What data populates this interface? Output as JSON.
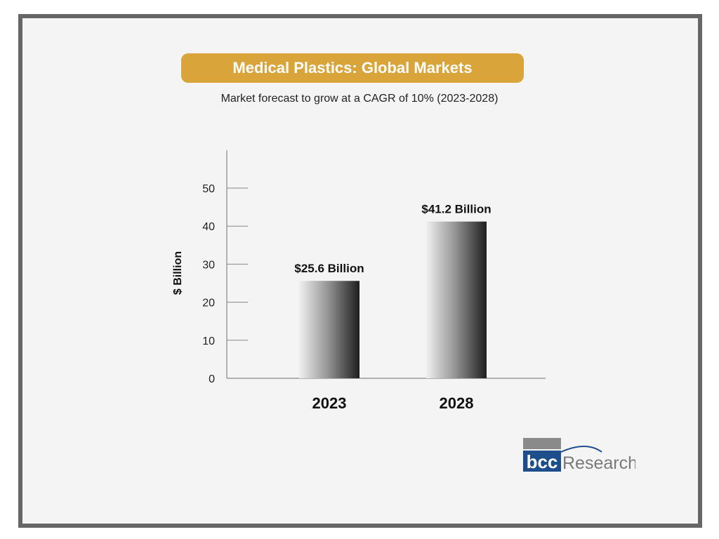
{
  "chart_data": {
    "type": "bar",
    "title": "Medical Plastics: Global Markets",
    "subtitle": "Market forecast to grow at a CAGR of 10% (2023-2028)",
    "categories": [
      "2023",
      "2028"
    ],
    "values": [
      25.6,
      41.2
    ],
    "data_labels": [
      "$25.6 Billion",
      "$41.2 Billion"
    ],
    "ylabel": "$ Billion",
    "xlabel": "",
    "ylim": [
      0,
      60
    ],
    "yticks": [
      0,
      10,
      20,
      30,
      40,
      50
    ],
    "grid": false,
    "legend": "none"
  },
  "logo": {
    "brand": "bcc",
    "text": "Research"
  },
  "colors": {
    "title_bg": "#d9a53b",
    "frame": "#666666",
    "logo_blue": "#1e4d8c",
    "logo_gray": "#8a8a8a"
  }
}
